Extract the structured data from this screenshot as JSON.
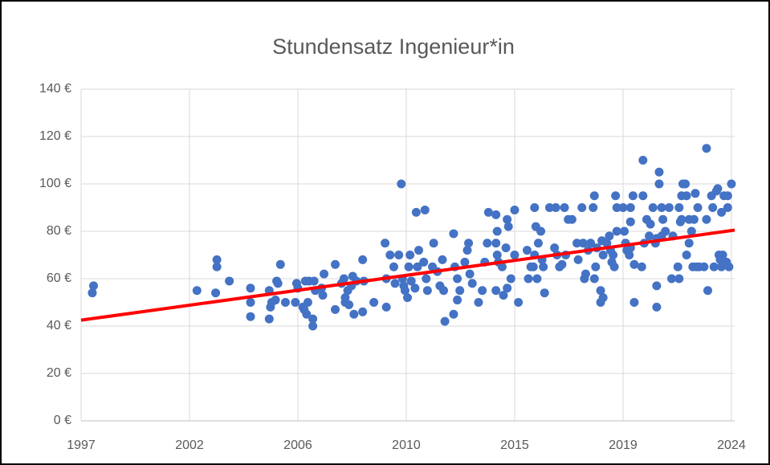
{
  "chart_data": {
    "type": "scatter",
    "title": "Stundensatz Ingenieur*in",
    "xlim": [
      1997.9,
      2024.13
    ],
    "xticks": [
      {
        "value": 1997.9,
        "label": "1997"
      },
      {
        "value": 2002.25,
        "label": "2002"
      },
      {
        "value": 2006.6,
        "label": "2006"
      },
      {
        "value": 2010.95,
        "label": "2010"
      },
      {
        "value": 2015.3,
        "label": "2015"
      },
      {
        "value": 2019.65,
        "label": "2019"
      },
      {
        "value": 2024.0,
        "label": "2024"
      }
    ],
    "ylim": [
      0,
      140
    ],
    "yticks": [
      {
        "value": 0,
        "label": "0 €"
      },
      {
        "value": 20,
        "label": "20 €"
      },
      {
        "value": 40,
        "label": "40 €"
      },
      {
        "value": 60,
        "label": "60 €"
      },
      {
        "value": 80,
        "label": "80 €"
      },
      {
        "value": 100,
        "label": "100 €"
      },
      {
        "value": 120,
        "label": "120 €"
      },
      {
        "value": 140,
        "label": "140 €"
      }
    ],
    "grid": true,
    "series": [
      {
        "color": "#4472c4",
        "x": [
          1998.35,
          1998.4,
          2002.55,
          2003.35,
          2003.35,
          2003.3,
          2003.85,
          2004.7,
          2004.7,
          2004.7,
          2005.45,
          2005.45,
          2005.5,
          2005.55,
          2005.75,
          2005.8,
          2005.7,
          2005.9,
          2006.1,
          2006.55,
          2006.6,
          2006.5,
          2006.8,
          2006.85,
          2006.95,
          2006.9,
          2007.05,
          2007.0,
          2007.2,
          2007.2,
          2007.25,
          2007.3,
          2007.55,
          2007.65,
          2007.6,
          2008.1,
          2008.1,
          2008.35,
          2008.45,
          2008.5,
          2008.6,
          2008.65,
          2008.75,
          2008.8,
          2008.5,
          2008.85,
          2008.95,
          2009.2,
          2009.2,
          2009.25,
          2009.65,
          2010.1,
          2010.15,
          2010.15,
          2010.3,
          2010.45,
          2010.5,
          2010.65,
          2010.75,
          2010.8,
          2010.85,
          2010.9,
          2011.0,
          2011.05,
          2011.1,
          2011.15,
          2011.35,
          2011.4,
          2011.3,
          2011.45,
          2011.7,
          2011.75,
          2011.65,
          2011.8,
          2012.0,
          2012.05,
          2012.2,
          2012.3,
          2012.45,
          2012.4,
          2012.5,
          2012.85,
          2012.9,
          2013.0,
          2013.1,
          2013.0,
          2012.85,
          2013.3,
          2013.4,
          2013.45,
          2013.5,
          2013.6,
          2013.85,
          2014.0,
          2014.1,
          2014.2,
          2014.25,
          2014.55,
          2014.6,
          2014.55,
          2014.6,
          2014.55,
          2014.65,
          2014.8,
          2014.95,
          2015.0,
          2015.05,
          2015.0,
          2015.15,
          2014.85,
          2015.3,
          2015.3,
          2015.45,
          2015.8,
          2015.85,
          2015.95,
          2016.1,
          2016.15,
          2016.1,
          2016.2,
          2016.05,
          2016.25,
          2016.35,
          2016.4,
          2016.45,
          2016.5,
          2016.7,
          2016.95,
          2017.0,
          2016.9,
          2017.1,
          2017.2,
          2017.35,
          2017.3,
          2017.45,
          2017.6,
          2017.8,
          2017.85,
          2018.0,
          2018.05,
          2018.1,
          2018.15,
          2018.25,
          2018.35,
          2018.45,
          2018.5,
          2018.55,
          2018.5,
          2018.6,
          2018.75,
          2018.75,
          2018.85,
          2018.8,
          2018.85,
          2019.0,
          2019.1,
          2019.15,
          2019.25,
          2019.2,
          2019.4,
          2019.3,
          2019.35,
          2019.4,
          2019.65,
          2019.7,
          2019.75,
          2019.8,
          2019.9,
          2019.95,
          2020.05,
          2020.1,
          2019.95,
          2019.95,
          2020.1,
          2020.45,
          2020.45,
          2020.5,
          2020.4,
          2020.6,
          2020.7,
          2020.75,
          2020.85,
          2020.95,
          2021.0,
          2021.1,
          2021.1,
          2021.2,
          2021.0,
          2021.0,
          2021.2,
          2021.25,
          2021.35,
          2021.5,
          2021.65,
          2021.6,
          2021.9,
          2021.85,
          2021.9,
          2021.95,
          2022.0,
          2022.0,
          2022.05,
          2022.15,
          2022.2,
          2022.3,
          2022.5,
          2022.4,
          2022.3,
          2022.2,
          2022.45,
          2022.7,
          2022.55,
          2022.65,
          2022.6,
          2023.0,
          2023.0,
          2022.9,
          2023.05,
          2023.2,
          2023.25,
          2023.4,
          2023.45,
          2023.3,
          2023.5,
          2023.55,
          2023.6,
          2023.6,
          2023.7,
          2023.65,
          2023.85,
          2023.85,
          2023.8,
          2023.9,
          2024.0
        ],
        "values": [
          54,
          57,
          55,
          65,
          68,
          54,
          59,
          56,
          50,
          44,
          55,
          43,
          48,
          50,
          59,
          58,
          51,
          66,
          50,
          58,
          56,
          50,
          48,
          47,
          45,
          59,
          59,
          50,
          43,
          40,
          59,
          55,
          56,
          62,
          53,
          66,
          47,
          58,
          60,
          52,
          55,
          49,
          57,
          61,
          50,
          45,
          59,
          68,
          46,
          59,
          50,
          75,
          60,
          48,
          70,
          65,
          58,
          70,
          100,
          60,
          57,
          55,
          52,
          65,
          70,
          59,
          88,
          65,
          56,
          72,
          89,
          60,
          67,
          55,
          65,
          75,
          63,
          57,
          55,
          68,
          42,
          79,
          65,
          60,
          55,
          51,
          45,
          67,
          72,
          75,
          62,
          58,
          50,
          55,
          67,
          75,
          88,
          87,
          80,
          75,
          70,
          55,
          67,
          65,
          73,
          85,
          82,
          56,
          60,
          53,
          89,
          70,
          50,
          72,
          60,
          65,
          90,
          82,
          70,
          60,
          65,
          75,
          80,
          68,
          65,
          54,
          90,
          90,
          70,
          73,
          65,
          66,
          70,
          90,
          85,
          85,
          75,
          68,
          90,
          75,
          60,
          62,
          72,
          75,
          90,
          95,
          65,
          60,
          73,
          50,
          55,
          52,
          76,
          70,
          75,
          78,
          72,
          70,
          67,
          90,
          65,
          95,
          80,
          90,
          80,
          75,
          72,
          70,
          73,
          95,
          66,
          90,
          84,
          50,
          110,
          95,
          75,
          65,
          85,
          78,
          83,
          90,
          75,
          77,
          105,
          100,
          90,
          57,
          48,
          78,
          85,
          80,
          90,
          78,
          60,
          60,
          65,
          90,
          84,
          85,
          95,
          100,
          100,
          95,
          85,
          85,
          80,
          75,
          70,
          65,
          65,
          96,
          90,
          65,
          115,
          85,
          65,
          55,
          95,
          90,
          97,
          98,
          65,
          70,
          68,
          65,
          88,
          95,
          70,
          90,
          95,
          67,
          65,
          100
        ]
      }
    ],
    "trendline": {
      "color": "#ff0000",
      "x": [
        1997.9,
        2024.13
      ],
      "values": [
        42.5,
        80.5
      ]
    }
  }
}
